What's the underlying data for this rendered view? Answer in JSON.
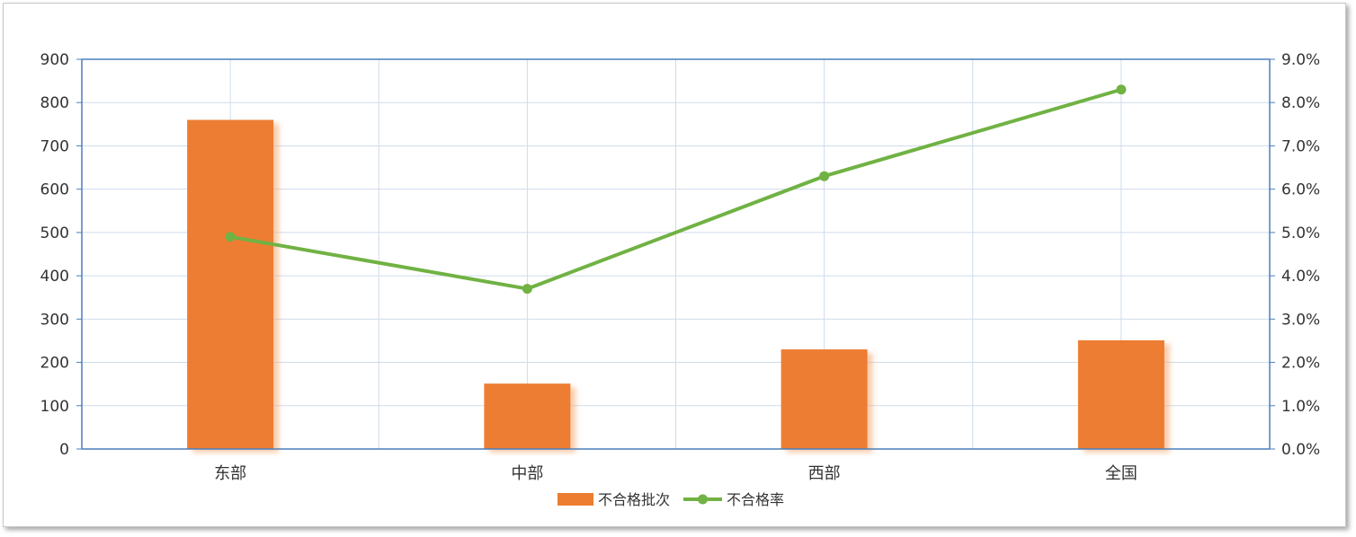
{
  "chart_data": {
    "type": "bar",
    "categories": [
      "东部",
      "中部",
      "西部",
      "全国"
    ],
    "series": [
      {
        "name": "不合格批次",
        "type": "bar",
        "axis": "left",
        "values": [
          760,
          151,
          230,
          251
        ],
        "color": "#ED7D31"
      },
      {
        "name": "不合格率",
        "type": "line",
        "axis": "right",
        "values": [
          4.9,
          3.7,
          6.3,
          8.3
        ],
        "color": "#70B243"
      }
    ],
    "y_left": {
      "lim": [
        0,
        900
      ],
      "ticks": [
        "0",
        "100",
        "200",
        "300",
        "400",
        "500",
        "600",
        "700",
        "800",
        "900"
      ]
    },
    "y_right": {
      "lim": [
        0,
        9
      ],
      "ticks": [
        "0.0%",
        "1.0%",
        "2.0%",
        "3.0%",
        "4.0%",
        "5.0%",
        "6.0%",
        "7.0%",
        "8.0%",
        "9.0%"
      ]
    },
    "grid": true,
    "legend_position": "bottom",
    "colors": {
      "axis": "#4A7EBB",
      "grid": "#CFDCEB",
      "text": "#333333"
    }
  }
}
